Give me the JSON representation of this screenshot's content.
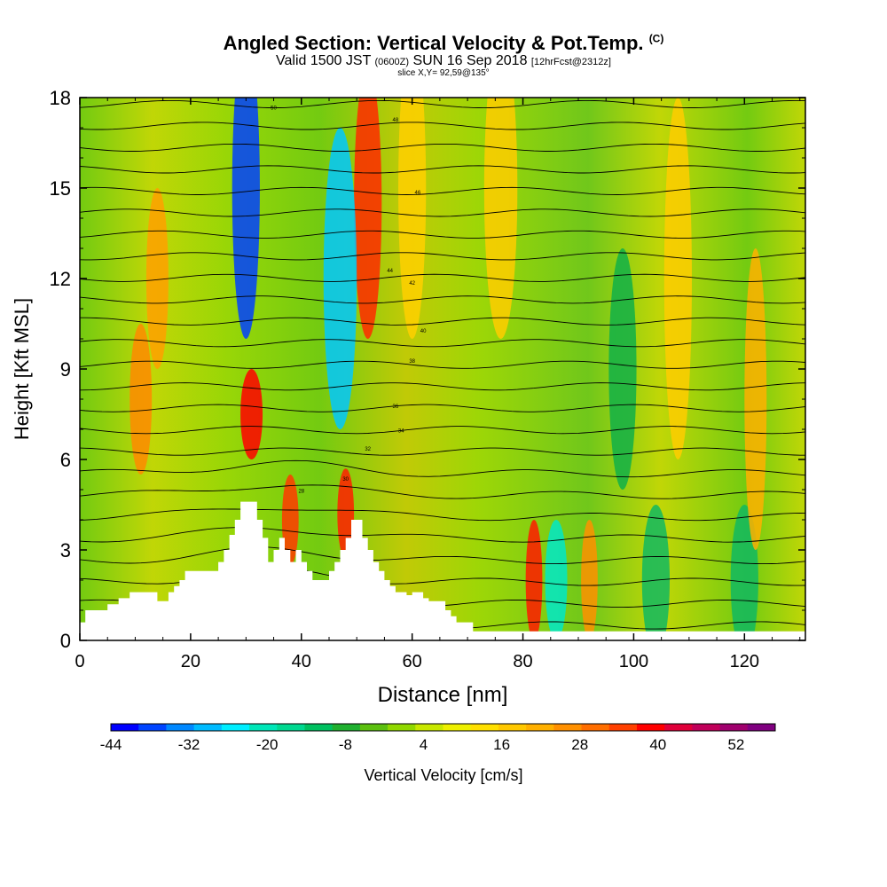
{
  "chart_data": {
    "type": "heatmap",
    "title_main": "Angled Section: Vertical Velocity & Pot.Temp.",
    "title_suffix": "(C)",
    "subtitle_pre": "Valid 1500 JST",
    "subtitle_zulu": "(0600Z)",
    "subtitle_date": "SUN 16 Sep 2018",
    "subtitle_fcst": "[12hrFcst@2312z]",
    "slice_label": "slice X,Y= 92,59@135°",
    "xlabel": "Distance [nm]",
    "ylabel": "Height [Kft MSL]",
    "xlim": [
      0,
      131
    ],
    "ylim": [
      0,
      18
    ],
    "x_ticks": [
      "0",
      "20",
      "40",
      "60",
      "80",
      "100",
      "120"
    ],
    "y_ticks": [
      "0",
      "3",
      "6",
      "9",
      "12",
      "15",
      "18"
    ],
    "colorbar": {
      "label": "Vertical Velocity [cm/s]",
      "range": [
        -44,
        58
      ],
      "tick_labels": [
        "-44",
        "-32",
        "-20",
        "-8",
        "4",
        "16",
        "28",
        "40",
        "52"
      ],
      "colors": [
        "#0000ff",
        "#0044ff",
        "#0088ff",
        "#00bbff",
        "#00eeff",
        "#00e6b8",
        "#00d890",
        "#00c060",
        "#20b030",
        "#5cc010",
        "#90d800",
        "#c8e800",
        "#eef000",
        "#ffe000",
        "#ffc800",
        "#ffb000",
        "#ff9000",
        "#ff6e00",
        "#ff4000",
        "#ff0000",
        "#e0003a",
        "#c0005a",
        "#a0006e",
        "#800080"
      ]
    },
    "theta_labels": [
      "50",
      "48",
      "46",
      "44",
      "42",
      "40",
      "38",
      "36",
      "34",
      "32",
      "30",
      "28"
    ],
    "terrain_profile": {
      "x": [
        0,
        1,
        2,
        3,
        4,
        5,
        6,
        7,
        8,
        9,
        10,
        11,
        12,
        13,
        14,
        15,
        16,
        17,
        18,
        19,
        20,
        21,
        22,
        23,
        24,
        25,
        26,
        27,
        28,
        29,
        30,
        31,
        32,
        33,
        34,
        35,
        36,
        37,
        38,
        39,
        40,
        41,
        42,
        43,
        44,
        45,
        46,
        47,
        48,
        49,
        50,
        51,
        52,
        53,
        54,
        55,
        56,
        57,
        58,
        59,
        60,
        61,
        62,
        63,
        64,
        65,
        66,
        67,
        68,
        69,
        70,
        71,
        72,
        131
      ],
      "y": [
        0.6,
        1.0,
        1.0,
        1.0,
        1.0,
        1.2,
        1.2,
        1.4,
        1.4,
        1.6,
        1.6,
        1.6,
        1.6,
        1.6,
        1.3,
        1.3,
        1.6,
        1.8,
        2.0,
        2.3,
        2.3,
        2.3,
        2.3,
        2.3,
        2.3,
        2.6,
        3.0,
        3.5,
        4.0,
        4.6,
        4.6,
        4.6,
        4.0,
        3.4,
        2.6,
        3.0,
        3.4,
        3.0,
        2.6,
        3.0,
        2.6,
        2.3,
        2.0,
        2.0,
        2.0,
        2.3,
        2.6,
        3.0,
        3.4,
        4.0,
        4.0,
        3.4,
        3.0,
        2.6,
        2.3,
        2.0,
        1.8,
        1.6,
        1.6,
        1.5,
        1.6,
        1.6,
        1.4,
        1.3,
        1.3,
        1.3,
        1.0,
        0.8,
        0.6,
        0.6,
        0.6,
        0.3,
        0.3,
        0.3
      ]
    }
  }
}
